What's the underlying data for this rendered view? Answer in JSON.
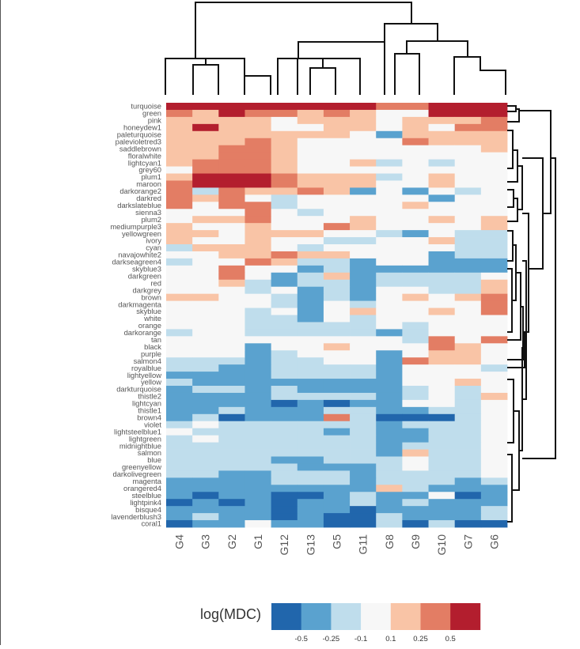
{
  "chart_data": {
    "type": "heatmap",
    "columns": [
      "G4",
      "G3",
      "G2",
      "G1",
      "G12",
      "G13",
      "G5",
      "G11",
      "G8",
      "G9",
      "G10",
      "G7",
      "G6"
    ],
    "rows": [
      "turquoise",
      "green",
      "pink",
      "honeydew1",
      "paleturquoise",
      "palevioletred3",
      "saddlebrown",
      "floralwhite",
      "lightcyan1",
      "grey60",
      "plum1",
      "maroon",
      "darkorange2",
      "darkred",
      "darkslateblue",
      "sienna3",
      "plum2",
      "mediumpurple3",
      "yellowgreen",
      "ivory",
      "cyan",
      "navajowhite2",
      "darkseagreen4",
      "skyblue3",
      "darkgreen",
      "red",
      "darkgrey",
      "brown",
      "darkmagenta",
      "skyblue",
      "white",
      "orange",
      "darkorange",
      "tan",
      "black",
      "purple",
      "salmon4",
      "royalblue",
      "lightyellow",
      "yellow",
      "darkturquoise",
      "thistle2",
      "lightcyan",
      "thistle1",
      "brown4",
      "violet",
      "lightsteelblue1",
      "lightgreen",
      "midnightblue",
      "salmon",
      "blue",
      "greenyellow",
      "darkolivegreen",
      "magenta",
      "orangered4",
      "steelblue",
      "lightpink4",
      "bisque4",
      "lavenderblush3",
      "coral1"
    ],
    "values": [
      [
        3,
        3,
        3,
        3,
        3,
        3,
        3,
        3,
        2,
        2,
        3,
        3,
        3
      ],
      [
        2,
        1,
        3,
        2,
        2,
        1,
        2,
        1,
        0,
        0,
        3,
        3,
        3
      ],
      [
        1,
        1,
        1,
        1,
        0,
        1,
        1,
        1,
        0,
        1,
        1,
        1,
        2
      ],
      [
        1,
        3,
        1,
        1,
        0,
        0,
        1,
        1,
        0,
        1,
        0,
        2,
        2
      ],
      [
        1,
        1,
        1,
        1,
        1,
        1,
        1,
        0,
        -2,
        1,
        1,
        1,
        1
      ],
      [
        1,
        1,
        1,
        2,
        1,
        0,
        0,
        0,
        0,
        2,
        1,
        1,
        1
      ],
      [
        1,
        1,
        2,
        2,
        1,
        0,
        0,
        0,
        0,
        0,
        0,
        0,
        1
      ],
      [
        1,
        1,
        2,
        2,
        1,
        0,
        0,
        0,
        0,
        0,
        0,
        0,
        0
      ],
      [
        1,
        2,
        2,
        2,
        1,
        0,
        0,
        1,
        -1,
        0,
        -1,
        0,
        0
      ],
      [
        0,
        2,
        2,
        2,
        1,
        0,
        0,
        0,
        0,
        0,
        0,
        0,
        0
      ],
      [
        1,
        3,
        3,
        3,
        2,
        1,
        1,
        1,
        -1,
        0,
        1,
        0,
        0
      ],
      [
        2,
        3,
        3,
        3,
        2,
        1,
        1,
        1,
        0,
        0,
        1,
        0,
        0
      ],
      [
        2,
        -1,
        2,
        1,
        1,
        2,
        1,
        -2,
        0,
        -2,
        0,
        -1,
        0
      ],
      [
        2,
        1,
        2,
        0,
        -1,
        0,
        0,
        0,
        0,
        0,
        -2,
        0,
        0
      ],
      [
        2,
        0,
        2,
        2,
        -1,
        0,
        0,
        0,
        0,
        1,
        0,
        0,
        0
      ],
      [
        0,
        0,
        0,
        2,
        0,
        -1,
        0,
        0,
        0,
        0,
        0,
        0,
        0
      ],
      [
        0,
        1,
        1,
        2,
        0,
        0,
        0,
        1,
        0,
        0,
        1,
        0,
        1
      ],
      [
        1,
        0,
        0,
        1,
        0,
        0,
        2,
        1,
        0,
        0,
        0,
        0,
        1
      ],
      [
        1,
        1,
        0,
        1,
        1,
        1,
        0,
        0,
        -1,
        -2,
        0,
        -1,
        -1
      ],
      [
        1,
        0,
        0,
        1,
        0,
        0,
        -1,
        -1,
        0,
        0,
        1,
        -1,
        -1
      ],
      [
        -1,
        1,
        1,
        1,
        0,
        -1,
        0,
        0,
        0,
        0,
        0,
        -1,
        -1
      ],
      [
        0,
        0,
        1,
        1,
        2,
        1,
        1,
        0,
        0,
        0,
        -2,
        -1,
        -1
      ],
      [
        -1,
        0,
        0,
        2,
        1,
        -1,
        -1,
        -2,
        0,
        0,
        -2,
        -2,
        -2
      ],
      [
        0,
        0,
        2,
        0,
        0,
        -2,
        -1,
        -2,
        -2,
        -2,
        -2,
        -2,
        -2
      ],
      [
        0,
        0,
        2,
        0,
        -2,
        -1,
        1,
        -2,
        -1,
        -1,
        -1,
        -1,
        0
      ],
      [
        0,
        0,
        1,
        -1,
        -2,
        -1,
        -1,
        -2,
        -1,
        -1,
        -1,
        -1,
        1
      ],
      [
        0,
        0,
        0,
        -1,
        0,
        -2,
        -1,
        -2,
        0,
        0,
        -1,
        -1,
        1
      ],
      [
        1,
        1,
        0,
        0,
        -1,
        -2,
        -1,
        -2,
        0,
        1,
        0,
        1,
        2
      ],
      [
        0,
        0,
        0,
        0,
        -1,
        -2,
        0,
        -1,
        0,
        0,
        0,
        0,
        2
      ],
      [
        0,
        0,
        0,
        -1,
        0,
        -2,
        0,
        1,
        0,
        0,
        1,
        0,
        2
      ],
      [
        0,
        0,
        0,
        -1,
        -1,
        -2,
        0,
        -1,
        0,
        0,
        0,
        0,
        0
      ],
      [
        0,
        0,
        0,
        -1,
        -1,
        -1,
        -1,
        -1,
        0,
        -1,
        0,
        0,
        0
      ],
      [
        -1,
        0,
        0,
        -1,
        -1,
        -1,
        -1,
        -1,
        -2,
        -1,
        0,
        0,
        0
      ],
      [
        0,
        0,
        0,
        0,
        0,
        0,
        0,
        0,
        0,
        -1,
        2,
        0,
        2
      ],
      [
        0,
        0,
        0,
        -2,
        0,
        0,
        1,
        0,
        0,
        0,
        2,
        1,
        0
      ],
      [
        0,
        0,
        0,
        -2,
        -1,
        0,
        0,
        0,
        -2,
        0,
        1,
        1,
        0
      ],
      [
        -1,
        -1,
        -1,
        -2,
        -1,
        -1,
        0,
        0,
        -2,
        2,
        1,
        1,
        0
      ],
      [
        -1,
        -1,
        -2,
        -2,
        -1,
        -1,
        -1,
        -1,
        -2,
        0,
        0,
        0,
        -1
      ],
      [
        -2,
        -2,
        -2,
        -2,
        -1,
        -1,
        -1,
        -1,
        -2,
        0,
        0,
        0,
        0
      ],
      [
        -1,
        -2,
        -2,
        -2,
        -2,
        -2,
        -2,
        -2,
        -2,
        0,
        0,
        1,
        0
      ],
      [
        -2,
        -1,
        -1,
        -2,
        -1,
        -2,
        -2,
        -2,
        -2,
        -1,
        0,
        -1,
        0
      ],
      [
        -2,
        -2,
        -2,
        -2,
        -1,
        -1,
        -1,
        -1,
        -2,
        -1,
        0,
        -1,
        1
      ],
      [
        -2,
        -2,
        -2,
        -2,
        -3,
        -2,
        -3,
        -2,
        -2,
        0,
        0,
        -1,
        0
      ],
      [
        -2,
        -2,
        -1,
        -2,
        -2,
        -2,
        -1,
        -1,
        -2,
        -2,
        -1,
        -1,
        0
      ],
      [
        -2,
        -1,
        -3,
        -2,
        -2,
        -2,
        2,
        -1,
        -3,
        -3,
        -3,
        -1,
        0
      ],
      [
        -1,
        0,
        -1,
        -1,
        -1,
        -1,
        -1,
        -1,
        -2,
        -1,
        -1,
        -1,
        0
      ],
      [
        0,
        -1,
        -1,
        -1,
        -1,
        -1,
        -2,
        -1,
        -2,
        -2,
        -1,
        -1,
        0
      ],
      [
        -1,
        0,
        -1,
        -1,
        -1,
        -1,
        -1,
        -1,
        -2,
        -2,
        -1,
        -1,
        0
      ],
      [
        -1,
        -1,
        -1,
        -1,
        -1,
        -1,
        -1,
        -1,
        -2,
        -1,
        -1,
        -1,
        0
      ],
      [
        -1,
        -1,
        -1,
        -1,
        -1,
        -1,
        -1,
        -1,
        -2,
        1,
        -1,
        -1,
        0
      ],
      [
        -1,
        -1,
        -1,
        -1,
        -2,
        -2,
        -1,
        -1,
        -1,
        0,
        -1,
        -1,
        0
      ],
      [
        -1,
        -1,
        -1,
        -1,
        -1,
        -2,
        -2,
        -2,
        -1,
        0,
        -1,
        -1,
        0
      ],
      [
        -1,
        -1,
        -2,
        -2,
        -1,
        -1,
        -1,
        -2,
        -1,
        -1,
        -1,
        -1,
        0
      ],
      [
        -2,
        -2,
        -2,
        -2,
        -1,
        -1,
        -1,
        -2,
        -1,
        -1,
        -1,
        -2,
        -1
      ],
      [
        -2,
        -2,
        -2,
        -2,
        -2,
        -2,
        -2,
        -2,
        1,
        -1,
        -2,
        -2,
        -2
      ],
      [
        -2,
        -3,
        -2,
        -2,
        -3,
        -3,
        -2,
        -1,
        -2,
        -2,
        0,
        -3,
        -2
      ],
      [
        -3,
        -2,
        -3,
        -2,
        -3,
        -2,
        -2,
        -1,
        -2,
        -1,
        -2,
        -2,
        -2
      ],
      [
        -2,
        -2,
        -2,
        -2,
        -3,
        -2,
        -2,
        -3,
        -2,
        -2,
        -2,
        -2,
        -1
      ],
      [
        -2,
        -1,
        -2,
        -2,
        -3,
        -2,
        -3,
        -3,
        -1,
        -2,
        -2,
        -2,
        -1
      ],
      [
        -3,
        -2,
        -2,
        0,
        -2,
        -2,
        -3,
        -3,
        -1,
        -3,
        -1,
        -3,
        -3
      ]
    ],
    "legend": {
      "title": "log(MDC)",
      "colors": [
        "#2166ac",
        "#5aa2cf",
        "#bfddec",
        "#f7f7f7",
        "#f9c4a6",
        "#e37d64",
        "#b31e2e"
      ],
      "tick_labels": [
        "-0.5",
        "-0.25",
        "-0.1",
        "0.1",
        "0.25",
        "0.5"
      ],
      "placement": "bottom"
    },
    "column_dendrogram": true,
    "row_dendrogram": true,
    "grid": false
  }
}
